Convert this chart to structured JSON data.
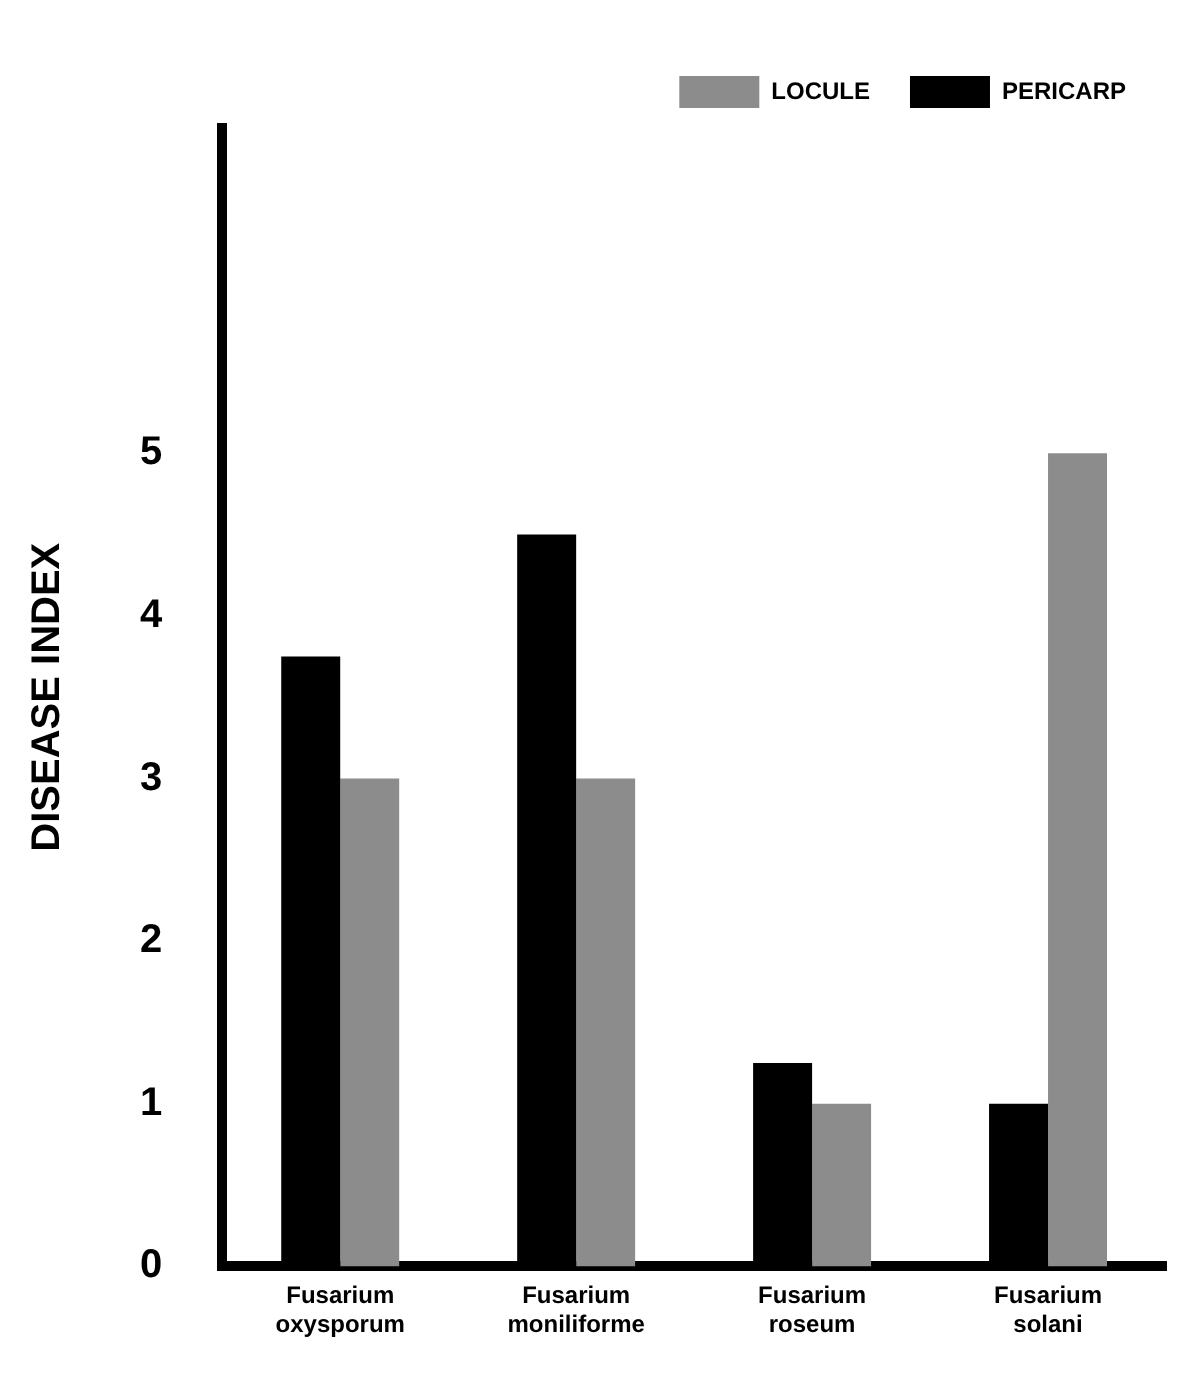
{
  "chart_data": {
    "type": "bar",
    "ylabel": "DISEASE INDEX",
    "categories": [
      "Fusarium oxysporum",
      "Fusarium moniliforme",
      "Fusarium roseum",
      "Fusarium solani"
    ],
    "series": [
      {
        "name": "PERICARP",
        "color": "#000000",
        "values": [
          3.75,
          4.5,
          1.25,
          1
        ]
      },
      {
        "name": "LOCULE",
        "color": "#8c8c8c",
        "values": [
          3,
          3,
          1,
          5
        ]
      }
    ],
    "ylim": [
      0,
      7
    ],
    "yticks": [
      0,
      1,
      2,
      3,
      4,
      5
    ],
    "grid": false,
    "legend": "top right"
  }
}
